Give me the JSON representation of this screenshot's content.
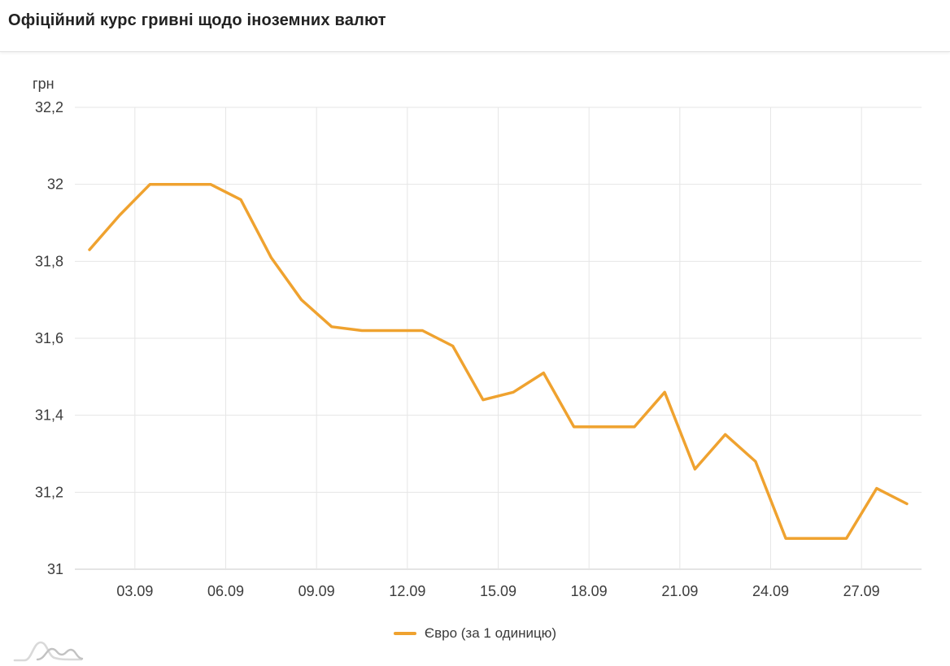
{
  "header": {
    "title": "Офіційний курс гривні щодо іноземних валют"
  },
  "chart_data": {
    "type": "line",
    "title": "Офіційний курс гривні щодо іноземних валют",
    "ylabel": "грн",
    "series_name": "Євро (за 1 одиницю)",
    "line_color": "#EFA22F",
    "x": [
      "01.09",
      "02.09",
      "03.09",
      "04.09",
      "05.09",
      "06.09",
      "07.09",
      "08.09",
      "09.09",
      "10.09",
      "11.09",
      "12.09",
      "13.09",
      "14.09",
      "15.09",
      "16.09",
      "17.09",
      "18.09",
      "19.09",
      "20.09",
      "21.09",
      "22.09",
      "23.09",
      "24.09",
      "25.09",
      "26.09",
      "27.09",
      "28.09"
    ],
    "values": [
      31.83,
      31.92,
      32.0,
      32.0,
      32.0,
      31.96,
      31.81,
      31.7,
      31.63,
      31.62,
      31.62,
      31.62,
      31.58,
      31.44,
      31.46,
      31.51,
      31.37,
      31.37,
      31.37,
      31.46,
      31.26,
      31.35,
      31.28,
      31.08,
      31.08,
      31.08,
      31.21,
      31.17
    ],
    "ylim": [
      31,
      32.2
    ],
    "yticks": [
      32.2,
      32,
      31.8,
      31.6,
      31.4,
      31.2,
      31
    ],
    "ytick_labels": [
      "32,2",
      "32",
      "31,8",
      "31,6",
      "31,4",
      "31,2",
      "31"
    ],
    "xtick_labels": [
      "03.09",
      "06.09",
      "09.09",
      "12.09",
      "15.09",
      "18.09",
      "21.09",
      "24.09",
      "27.09"
    ],
    "grid": true,
    "legend_position": "bottom"
  },
  "colors": {
    "grid": "#e6e6e6",
    "axis": "#c9c9c9",
    "tick_text": "#3c3c3c",
    "title_text": "#212121",
    "logo_light": "#d9d9d9",
    "logo_dark": "#c2c2c2"
  }
}
